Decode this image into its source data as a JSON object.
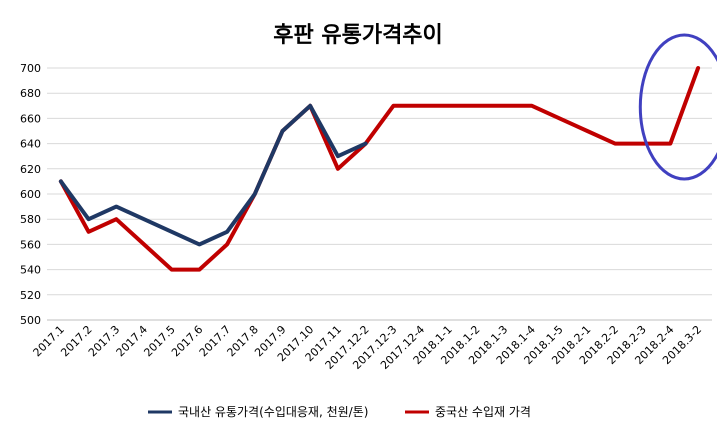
{
  "chart_data": {
    "type": "line",
    "title": "후판 유통가격추이",
    "categories": [
      "2017.1",
      "2017.2",
      "2017.3",
      "2017.4",
      "2017.5",
      "2017.6",
      "2017.7",
      "2017.8",
      "2017.9",
      "2017.10",
      "2017.11",
      "2017.12-2",
      "2017.12-3",
      "2017.12-4",
      "2018.1-1",
      "2018.1-2",
      "2018.1-3",
      "2018.1-4",
      "2018.1-5",
      "2018.2-1",
      "2018.2-2",
      "2018.2-3",
      "2018.2-4",
      "2018.3-2"
    ],
    "ylim": [
      500,
      700
    ],
    "yticks": [
      500,
      520,
      540,
      560,
      580,
      600,
      620,
      640,
      660,
      680,
      700
    ],
    "grid": true,
    "legend_position": "bottom",
    "series": [
      {
        "name": "국내산 유통가격(수입대응재, 천원/톤)",
        "color": "#1f3864",
        "values": [
          610,
          580,
          590,
          580,
          570,
          560,
          570,
          600,
          650,
          670,
          630,
          640,
          null,
          null,
          null,
          null,
          null,
          null,
          null,
          null,
          null,
          null,
          null,
          null
        ]
      },
      {
        "name": "중국산 수입재 가격",
        "color": "#c00000",
        "values": [
          610,
          570,
          580,
          560,
          540,
          540,
          560,
          600,
          650,
          670,
          620,
          640,
          670,
          670,
          670,
          670,
          670,
          670,
          660,
          650,
          640,
          640,
          640,
          700
        ]
      }
    ],
    "annotations": [
      {
        "type": "ellipse",
        "color": "#4040c0",
        "around_categories": [
          "2018.2-4",
          "2018.3-2"
        ]
      }
    ]
  }
}
